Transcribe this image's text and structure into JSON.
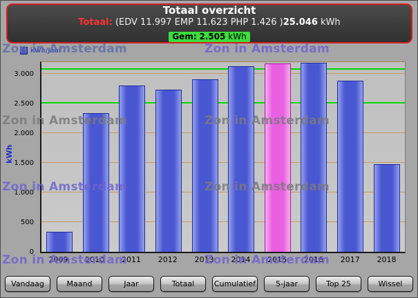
{
  "header": {
    "title": "Totaal overzicht",
    "total_label": "Totaal:",
    "breakdown": "(EDV 11.997 EMP 11.623 PHP 1.426 )",
    "total_value": "25.046",
    "total_unit": "kWh",
    "gem_label": "Gem:",
    "gem_value": "2.505",
    "gem_unit": "kWh"
  },
  "watermark": {
    "text": "Zon in Amsterdam"
  },
  "chart_data": {
    "type": "bar",
    "title": "",
    "legend": "kWh/Jaar",
    "xlabel": "",
    "ylabel": "kWh",
    "categories": [
      "2009",
      "2010",
      "2011",
      "2012",
      "2013",
      "2014",
      "2015",
      "2016",
      "2017",
      "2018"
    ],
    "values": [
      340,
      2340,
      2800,
      2730,
      2910,
      3130,
      3180,
      3190,
      2890,
      1480
    ],
    "highlight_index": 6,
    "ylim": [
      0,
      3200
    ],
    "grid": true,
    "legend_position": "top-left",
    "yticks": [
      {
        "value": 0,
        "label": "0"
      },
      {
        "value": 500,
        "label": "500"
      },
      {
        "value": 1000,
        "label": "1.000"
      },
      {
        "value": 1500,
        "label": "1.500"
      },
      {
        "value": 2000,
        "label": "2.000"
      },
      {
        "value": 2500,
        "label": "2.500"
      },
      {
        "value": 3000,
        "label": "3.000"
      }
    ],
    "reference_lines": [
      {
        "value": 2505,
        "label": "Gem 2.505 kWh",
        "color": "#00d800"
      },
      {
        "value": 3075,
        "label": "",
        "color": "#00d800"
      }
    ],
    "colors": {
      "bar": "#4a57d2",
      "bar_edge_light": "#95a1ea",
      "bar_border": "#1c2a9e",
      "highlight": "#e95fe2",
      "highlight_edge_light": "#f6aced",
      "highlight_border": "#a517a0",
      "grid": "#c49a66",
      "average_chip": "#3ddd3d",
      "header_border": "#d42020"
    }
  },
  "nav": {
    "buttons": [
      "Vandaag",
      "Maand",
      "Jaar",
      "Totaal",
      "Cumulatief",
      "5-jaar",
      "Top 25",
      "Wissel"
    ]
  }
}
